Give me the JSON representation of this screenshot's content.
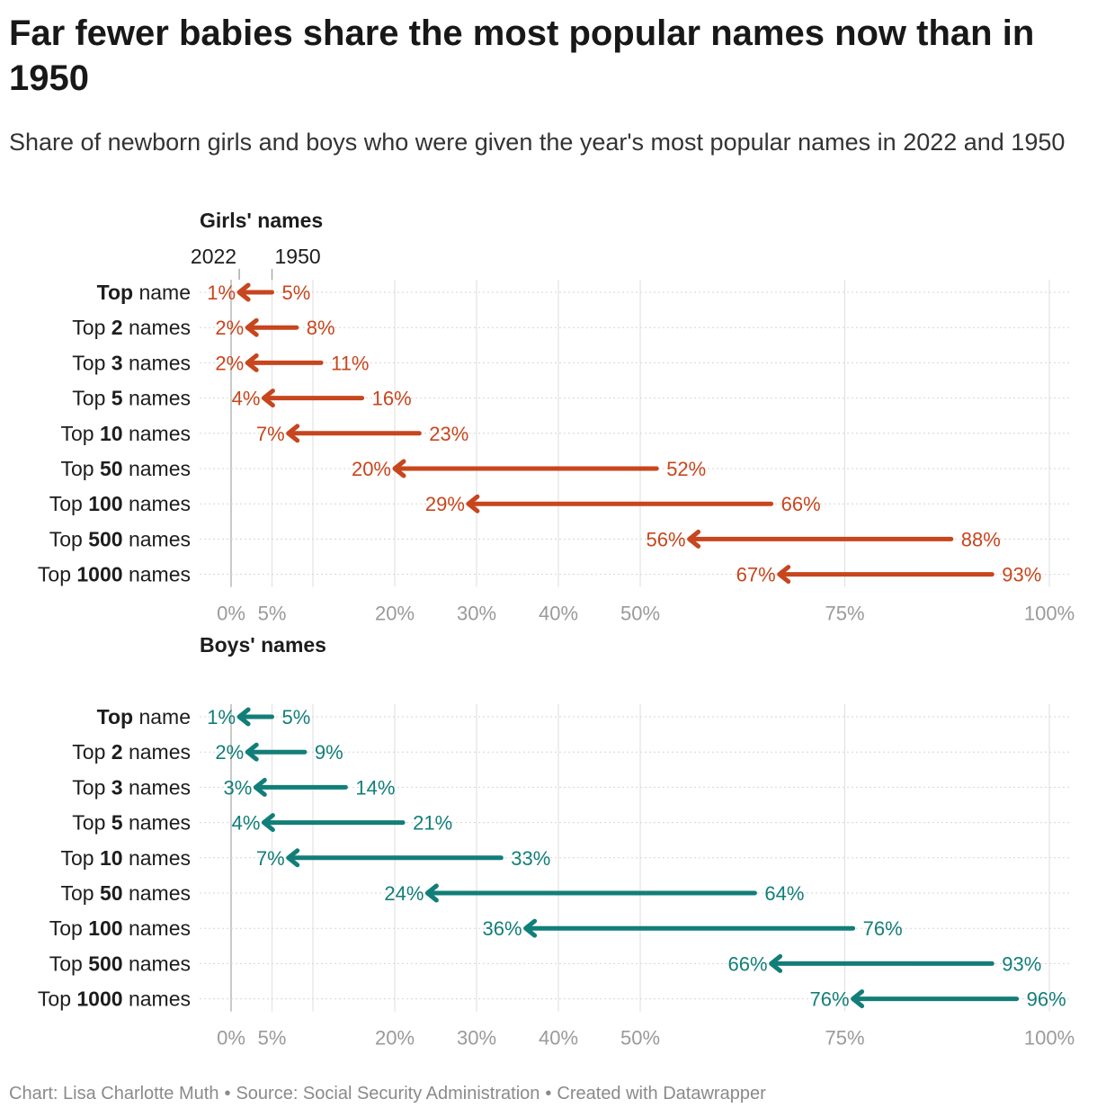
{
  "title": "Far fewer babies share the most popular names now than in 1950",
  "subtitle": "Share of newborn girls and boys who were given the year's most popular names in 2022 and 1950",
  "legend": {
    "start_label": "2022",
    "end_label": "1950"
  },
  "chart_data": {
    "type": "arrow-range",
    "x_unit": "%",
    "xlim": [
      0,
      100
    ],
    "xticks": [
      {
        "value": 0,
        "label": "0%"
      },
      {
        "value": 5,
        "label": "5%"
      },
      {
        "value": 20,
        "label": "20%"
      },
      {
        "value": 30,
        "label": "30%"
      },
      {
        "value": 40,
        "label": "40%"
      },
      {
        "value": 50,
        "label": "50%"
      },
      {
        "value": 75,
        "label": "75%"
      },
      {
        "value": 100,
        "label": "100%"
      }
    ],
    "gridlines": [
      0,
      5,
      10,
      20,
      30,
      40,
      50,
      75,
      100
    ],
    "categories": [
      {
        "prefix": "",
        "bold": "Top",
        "suffix": " name"
      },
      {
        "prefix": "Top ",
        "bold": "2",
        "suffix": " names"
      },
      {
        "prefix": "Top ",
        "bold": "3",
        "suffix": " names"
      },
      {
        "prefix": "Top ",
        "bold": "5",
        "suffix": " names"
      },
      {
        "prefix": "Top ",
        "bold": "10",
        "suffix": " names"
      },
      {
        "prefix": "Top ",
        "bold": "50",
        "suffix": " names"
      },
      {
        "prefix": "Top ",
        "bold": "100",
        "suffix": " names"
      },
      {
        "prefix": "Top ",
        "bold": "500",
        "suffix": " names"
      },
      {
        "prefix": "Top ",
        "bold": "1000",
        "suffix": " names"
      }
    ],
    "panels": [
      {
        "name": "girls",
        "title": "Girls' names",
        "color": "#c7461d",
        "series": [
          {
            "name": "1950",
            "values": [
              5,
              8,
              11,
              16,
              23,
              52,
              66,
              88,
              93
            ],
            "labels": [
              "5%",
              "8%",
              "11%",
              "16%",
              "23%",
              "52%",
              "66%",
              "88%",
              "93%"
            ]
          },
          {
            "name": "2022",
            "values": [
              1,
              2,
              2,
              4,
              7,
              20,
              29,
              56,
              67
            ],
            "labels": [
              "1%",
              "2%",
              "2%",
              "4%",
              "7%",
              "20%",
              "29%",
              "56%",
              "67%"
            ]
          }
        ]
      },
      {
        "name": "boys",
        "title": "Boys' names",
        "color": "#127e79",
        "series": [
          {
            "name": "1950",
            "values": [
              5,
              9,
              14,
              21,
              33,
              64,
              76,
              93,
              96
            ],
            "labels": [
              "5%",
              "9%",
              "14%",
              "21%",
              "33%",
              "64%",
              "76%",
              "93%",
              "96%"
            ]
          },
          {
            "name": "2022",
            "values": [
              1,
              2,
              3,
              4,
              7,
              24,
              36,
              66,
              76
            ],
            "labels": [
              "1%",
              "2%",
              "3%",
              "4%",
              "7%",
              "24%",
              "36%",
              "66%",
              "76%"
            ]
          }
        ]
      }
    ]
  },
  "footer": {
    "chart_credit": "Chart: Lisa Charlotte Muth",
    "source": "Source: Social Security Administration",
    "created_with": "Created with Datawrapper",
    "separator": "•"
  }
}
